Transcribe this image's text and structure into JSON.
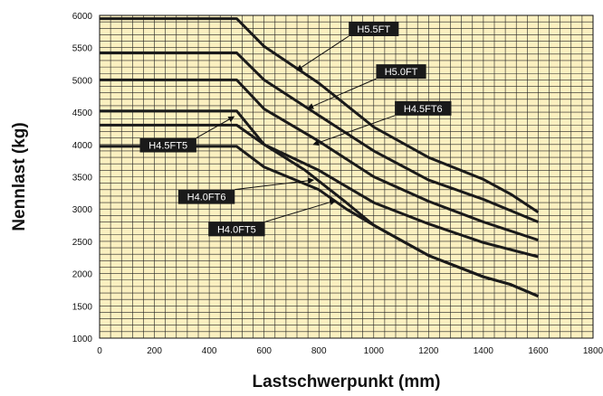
{
  "chart_data": {
    "type": "line",
    "title": "",
    "xlabel": "Lastschwerpunkt (mm)",
    "ylabel": "Nennlast (kg)",
    "xlim": [
      0,
      1800
    ],
    "ylim": [
      1000,
      6000
    ],
    "x_ticks": [
      0,
      200,
      400,
      600,
      800,
      1000,
      1200,
      1400,
      1600,
      1800
    ],
    "y_ticks": [
      1000,
      1500,
      2000,
      2500,
      3000,
      3500,
      4000,
      4500,
      5000,
      5500,
      6000
    ],
    "grid": true,
    "colors": {
      "plot_background": "#FBF0C0",
      "grid": "#222222",
      "series": "#1a1a1a",
      "label_box": "#1a1a1a",
      "label_text": "#ffffff"
    },
    "series": [
      {
        "name": "H5.5FT",
        "points": [
          [
            0,
            5950
          ],
          [
            500,
            5950
          ],
          [
            600,
            5520
          ],
          [
            800,
            4950
          ],
          [
            1000,
            4270
          ],
          [
            1200,
            3800
          ],
          [
            1400,
            3460
          ],
          [
            1500,
            3230
          ],
          [
            1600,
            2950
          ]
        ]
      },
      {
        "name": "H5.0FT",
        "points": [
          [
            0,
            5420
          ],
          [
            500,
            5420
          ],
          [
            600,
            5000
          ],
          [
            800,
            4450
          ],
          [
            1000,
            3900
          ],
          [
            1200,
            3450
          ],
          [
            1400,
            3150
          ],
          [
            1600,
            2800
          ]
        ]
      },
      {
        "name": "H4.5FT6",
        "points": [
          [
            0,
            5000
          ],
          [
            500,
            5000
          ],
          [
            600,
            4550
          ],
          [
            800,
            4050
          ],
          [
            1000,
            3500
          ],
          [
            1200,
            3120
          ],
          [
            1400,
            2800
          ],
          [
            1600,
            2520
          ]
        ]
      },
      {
        "name": "H4.5FT5",
        "points": [
          [
            0,
            4520
          ],
          [
            500,
            4520
          ],
          [
            600,
            4000
          ],
          [
            800,
            3600
          ],
          [
            1000,
            3100
          ],
          [
            1200,
            2770
          ],
          [
            1400,
            2480
          ],
          [
            1600,
            2260
          ]
        ]
      },
      {
        "name": "H4.0FT6",
        "points": [
          [
            0,
            4300
          ],
          [
            500,
            4300
          ],
          [
            600,
            4000
          ],
          [
            750,
            3600
          ],
          [
            900,
            3100
          ],
          [
            1000,
            2750
          ],
          [
            1200,
            2280
          ],
          [
            1400,
            1950
          ],
          [
            1500,
            1830
          ],
          [
            1600,
            1650
          ]
        ]
      },
      {
        "name": "H4.0FT5",
        "points": [
          [
            0,
            3970
          ],
          [
            500,
            3970
          ],
          [
            600,
            3650
          ],
          [
            800,
            3300
          ],
          [
            900,
            3000
          ],
          [
            1000,
            2750
          ],
          [
            1200,
            2280
          ],
          [
            1400,
            1950
          ],
          [
            1500,
            1830
          ],
          [
            1600,
            1650
          ]
        ]
      }
    ],
    "annotations": [
      {
        "label": "H5.5FT",
        "series": "H5.5FT",
        "target": [
          720,
          5150
        ],
        "box": [
          1000,
          5790
        ]
      },
      {
        "label": "H5.0FT",
        "series": "H5.0FT",
        "target": [
          760,
          4560
        ],
        "box": [
          1100,
          5130
        ]
      },
      {
        "label": "H4.5FT6",
        "series": "H4.5FT6",
        "target": [
          780,
          4000
        ],
        "box": [
          1180,
          4560
        ]
      },
      {
        "label": "H4.5FT5",
        "series": "H4.5FT5",
        "target": [
          490,
          4430
        ],
        "box": [
          250,
          3990
        ]
      },
      {
        "label": "H4.0FT6",
        "series": "H4.0FT6",
        "target": [
          780,
          3450
        ],
        "box": [
          390,
          3190
        ]
      },
      {
        "label": "H4.0FT5",
        "series": "H4.0FT5",
        "target": [
          860,
          3130
        ],
        "box": [
          500,
          2690
        ]
      }
    ]
  }
}
